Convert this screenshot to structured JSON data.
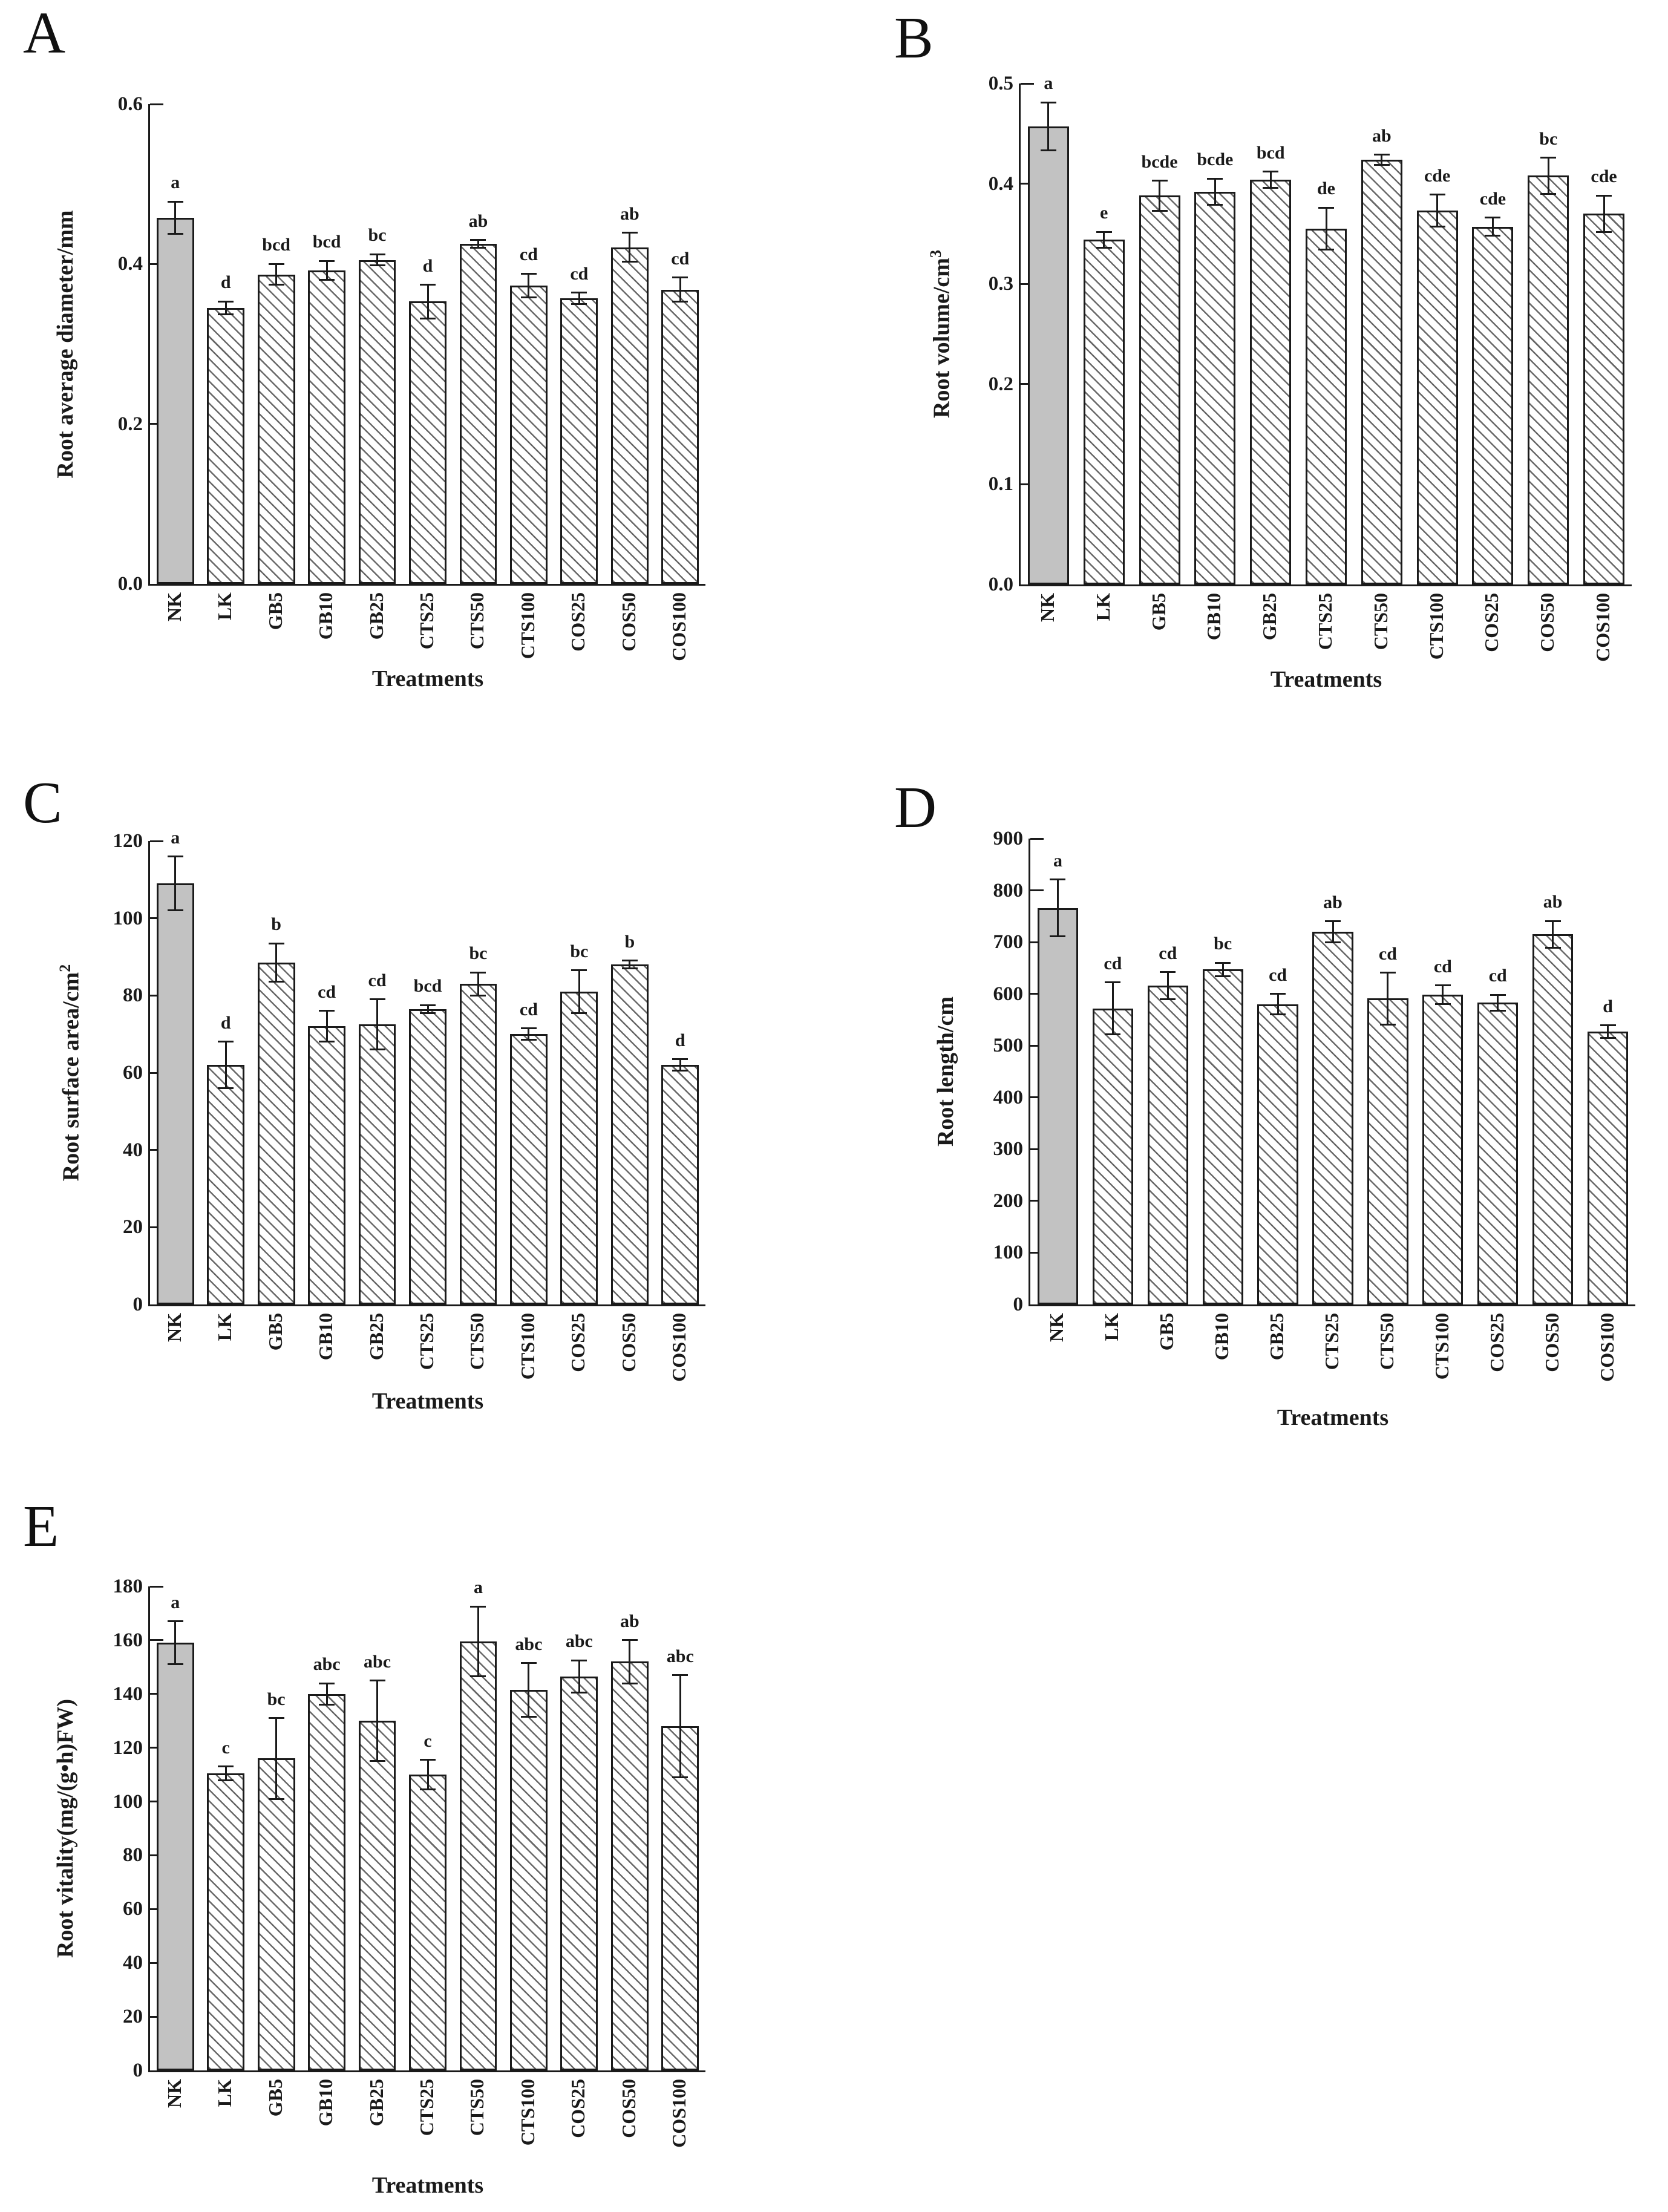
{
  "figure": {
    "xlabel": "Treatments",
    "categories": [
      "NK",
      "LK",
      "GB5",
      "GB10",
      "GB25",
      "CTS25",
      "CTS50",
      "CTS100",
      "COS25",
      "COS50",
      "COS100"
    ],
    "control_category": "NK",
    "colors": {
      "axis": "#1a1a1a",
      "text": "#1a1a1a",
      "bar_border": "#1a1a1a",
      "control_bar_fill": "#c2c2c2",
      "hatch_bar_fill": "#ffffff",
      "hatch_line": "#686868"
    }
  },
  "chart_data": [
    {
      "panel": "A",
      "type": "bar",
      "title": "",
      "xlabel": "Treatments",
      "ylabel": "Root average diameter/mm",
      "ylabel_sup": "",
      "ylim": [
        0,
        0.6
      ],
      "ytick_step": 0.2,
      "ytick_decimals": 1,
      "grid": false,
      "legend": "none",
      "categories": [
        "NK",
        "LK",
        "GB5",
        "GB10",
        "GB25",
        "CTS25",
        "CTS50",
        "CTS100",
        "COS25",
        "COS50",
        "COS100"
      ],
      "values": [
        0.458,
        0.345,
        0.387,
        0.392,
        0.405,
        0.353,
        0.425,
        0.373,
        0.357,
        0.421,
        0.368
      ],
      "errors": [
        0.02,
        0.008,
        0.013,
        0.012,
        0.007,
        0.021,
        0.005,
        0.015,
        0.007,
        0.018,
        0.015
      ],
      "sig_letters": [
        "a",
        "d",
        "bcd",
        "bcd",
        "bc",
        "d",
        "ab",
        "cd",
        "cd",
        "ab",
        "cd"
      ]
    },
    {
      "panel": "B",
      "type": "bar",
      "title": "",
      "xlabel": "Treatments",
      "ylabel": "Root volume/cm",
      "ylabel_sup": "3",
      "ylim": [
        0,
        0.5
      ],
      "ytick_step": 0.1,
      "ytick_decimals": 1,
      "grid": false,
      "legend": "none",
      "categories": [
        "NK",
        "LK",
        "GB5",
        "GB10",
        "GB25",
        "CTS25",
        "CTS50",
        "CTS100",
        "COS25",
        "COS50",
        "COS100"
      ],
      "values": [
        0.457,
        0.344,
        0.388,
        0.392,
        0.404,
        0.355,
        0.424,
        0.373,
        0.357,
        0.408,
        0.37
      ],
      "errors": [
        0.024,
        0.008,
        0.015,
        0.013,
        0.008,
        0.021,
        0.005,
        0.016,
        0.009,
        0.018,
        0.018
      ],
      "sig_letters": [
        "a",
        "e",
        "bcde",
        "bcde",
        "bcd",
        "de",
        "ab",
        "cde",
        "cde",
        "bc",
        "cde"
      ]
    },
    {
      "panel": "C",
      "type": "bar",
      "title": "",
      "xlabel": "Treatments",
      "ylabel": "Root surface area/cm",
      "ylabel_sup": "2",
      "ylim": [
        0,
        120
      ],
      "ytick_step": 20,
      "ytick_decimals": 0,
      "grid": false,
      "legend": "none",
      "categories": [
        "NK",
        "LK",
        "GB5",
        "GB10",
        "GB25",
        "CTS25",
        "CTS50",
        "CTS100",
        "COS25",
        "COS50",
        "COS100"
      ],
      "values": [
        109,
        62,
        88.5,
        72,
        72.5,
        76.5,
        83,
        70,
        81,
        88,
        62
      ],
      "errors": [
        7,
        6,
        5,
        4,
        6.5,
        1,
        3,
        1.5,
        5.5,
        1,
        1.5
      ],
      "sig_letters": [
        "a",
        "d",
        "b",
        "cd",
        "cd",
        "bcd",
        "bc",
        "cd",
        "bc",
        "b",
        "d"
      ]
    },
    {
      "panel": "D",
      "type": "bar",
      "title": "",
      "xlabel": "Treatments",
      "ylabel": "Root length/cm",
      "ylabel_sup": "",
      "ylim": [
        0,
        900
      ],
      "ytick_step": 100,
      "ytick_decimals": 0,
      "grid": false,
      "legend": "none",
      "categories": [
        "NK",
        "LK",
        "GB5",
        "GB10",
        "GB25",
        "CTS25",
        "CTS50",
        "CTS100",
        "COS25",
        "COS50",
        "COS100"
      ],
      "values": [
        766,
        572,
        616,
        647,
        580,
        720,
        591,
        598,
        583,
        715,
        527
      ],
      "errors": [
        55,
        50,
        26,
        13,
        20,
        20,
        50,
        18,
        15,
        26,
        12
      ],
      "sig_letters": [
        "a",
        "cd",
        "cd",
        "bc",
        "cd",
        "ab",
        "cd",
        "cd",
        "cd",
        "ab",
        "d"
      ]
    },
    {
      "panel": "E",
      "type": "bar",
      "title": "",
      "xlabel": "Treatments",
      "ylabel": "Root vitality(mg/(g•h)FW)",
      "ylabel_sup": "",
      "ylim": [
        0,
        180
      ],
      "ytick_step": 20,
      "ytick_decimals": 0,
      "grid": false,
      "legend": "none",
      "categories": [
        "NK",
        "LK",
        "GB5",
        "GB10",
        "GB25",
        "CTS25",
        "CTS50",
        "CTS100",
        "COS25",
        "COS50",
        "COS100"
      ],
      "values": [
        159,
        110.5,
        116,
        140,
        130,
        110,
        159.5,
        141.5,
        146.5,
        152,
        128
      ],
      "errors": [
        8,
        2.5,
        15,
        4,
        15,
        5.5,
        13,
        10,
        6,
        8,
        19
      ],
      "sig_letters": [
        "a",
        "c",
        "bc",
        "abc",
        "abc",
        "c",
        "a",
        "abc",
        "abc",
        "ab",
        "abc"
      ]
    }
  ]
}
